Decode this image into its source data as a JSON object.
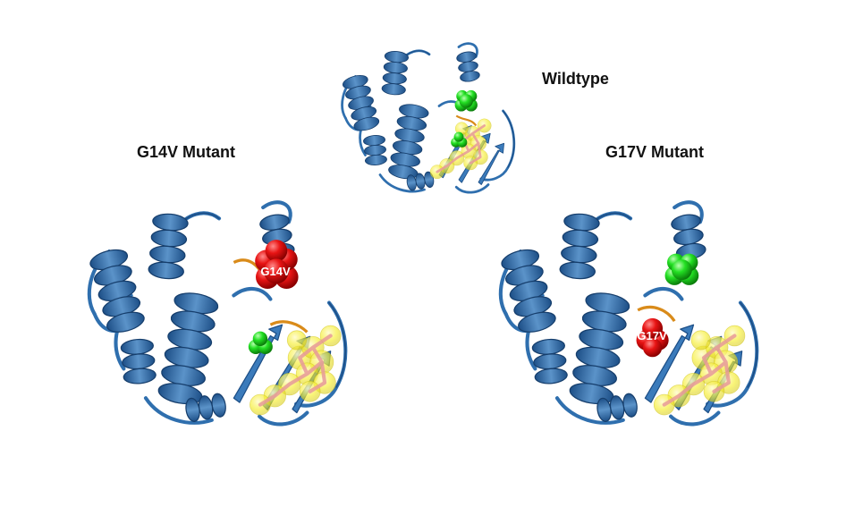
{
  "panels": {
    "wildtype": {
      "title": "Wildtype"
    },
    "g14v": {
      "title": "G14V Mutant",
      "mutation_label": "G14V"
    },
    "g17v": {
      "title": "G17V Mutant",
      "mutation_label": "G17V"
    }
  },
  "colors": {
    "ribbon": "#2f6fae",
    "ribbon_dark": "#1c4e86",
    "ribbon_light": "#5b93c9",
    "mutant_sphere": "#e01010",
    "glycine_sphere": "#22dd22",
    "ligand_sphere": "#f2ee3a",
    "ligand_stick": "#e79a9a",
    "loop": "#d98b1a"
  },
  "icons": [
    "protein-ribbon-illustration",
    "sphere-cluster",
    "ligand-surface"
  ]
}
